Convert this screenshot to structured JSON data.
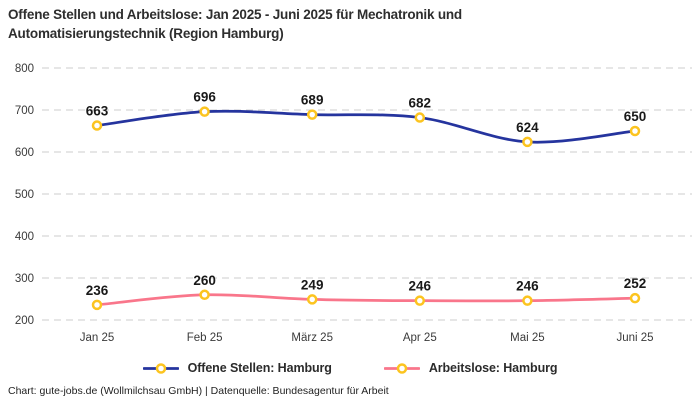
{
  "header": {
    "title_line1": "Offene Stellen und Arbeitslose: Jan 2025 - Juni 2025 für Mechatronik und",
    "title_line2": "Automatisierungstechnik (Region Hamburg)"
  },
  "footer": "Chart: gute-jobs.de (Wollmilchsau GmbH) | Datenquelle: Bundesagentur für Arbeit",
  "chart_data": {
    "type": "line",
    "title": "Offene Stellen und Arbeitslose: Jan 2025 - Juni 2025 für Mechatronik und Automatisierungstechnik (Region Hamburg)",
    "categories": [
      "Jan 25",
      "Feb 25",
      "März 25",
      "Apr 25",
      "Mai 25",
      "Juni 25"
    ],
    "series": [
      {
        "name": "Offene Stellen: Hamburg",
        "color": "#25349e",
        "values": [
          663,
          696,
          689,
          682,
          624,
          650
        ]
      },
      {
        "name": "Arbeitslose: Hamburg",
        "color": "#f9768b",
        "values": [
          236,
          260,
          249,
          246,
          246,
          252
        ]
      }
    ],
    "marker_color": "#fcc41f",
    "marker_fill": "#ffffff",
    "grid_color": "#cccccc",
    "tick_color": "#3a3a3a",
    "label_color": "#191919",
    "xlabel": "",
    "ylabel": "",
    "ylim": [
      200,
      800
    ],
    "yticks": [
      200,
      300,
      400,
      500,
      600,
      700,
      800
    ],
    "grid": "horizontal dashed",
    "legend_position": "bottom",
    "data_labels": true
  }
}
